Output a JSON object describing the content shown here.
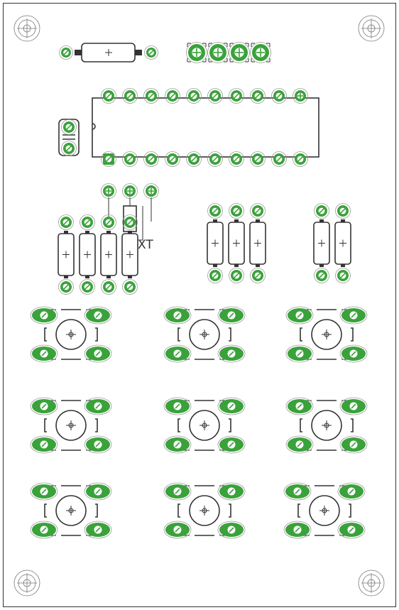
{
  "board": {
    "crystal_label": "XT",
    "colors": {
      "pad": "#3aa23a",
      "silkscreen": "#333333",
      "outline": "#333333",
      "background": "#ffffff"
    }
  }
}
